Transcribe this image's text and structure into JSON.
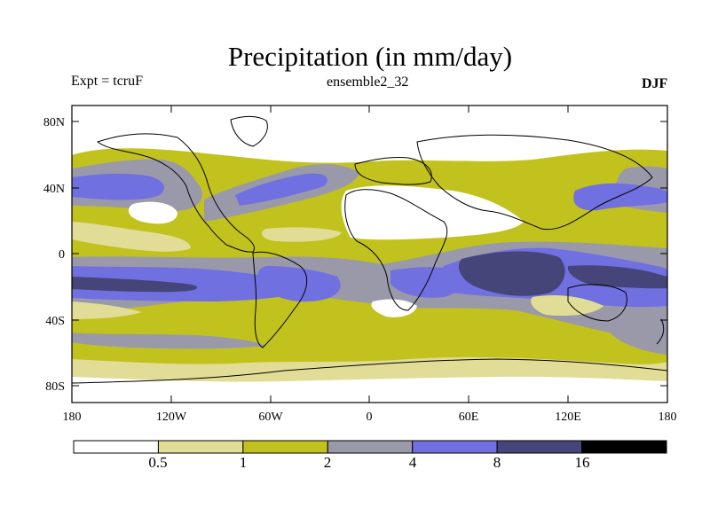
{
  "title": "Precipitation (in mm/day)",
  "labels": {
    "left": "Expt = tcruF",
    "center": "ensemble2_32",
    "right": "DJF"
  },
  "axes": {
    "y_ticks": [
      "80N",
      "40N",
      "0",
      "40S",
      "80S"
    ],
    "x_ticks": [
      "180",
      "120W",
      "60W",
      "0",
      "60E",
      "120E",
      "180"
    ]
  },
  "colorbar": {
    "labels": [
      "0.5",
      "1",
      "2",
      "4",
      "8",
      "16"
    ],
    "colors": [
      "#ffffff",
      "#e1dc96",
      "#c2c21e",
      "#9999aa",
      "#7070e0",
      "#45457a",
      "#000000"
    ]
  },
  "map": {
    "projection": "equirectangular",
    "lon_range": [
      -180,
      180
    ],
    "lat_range": [
      -90,
      90
    ],
    "coastlines": true
  }
}
